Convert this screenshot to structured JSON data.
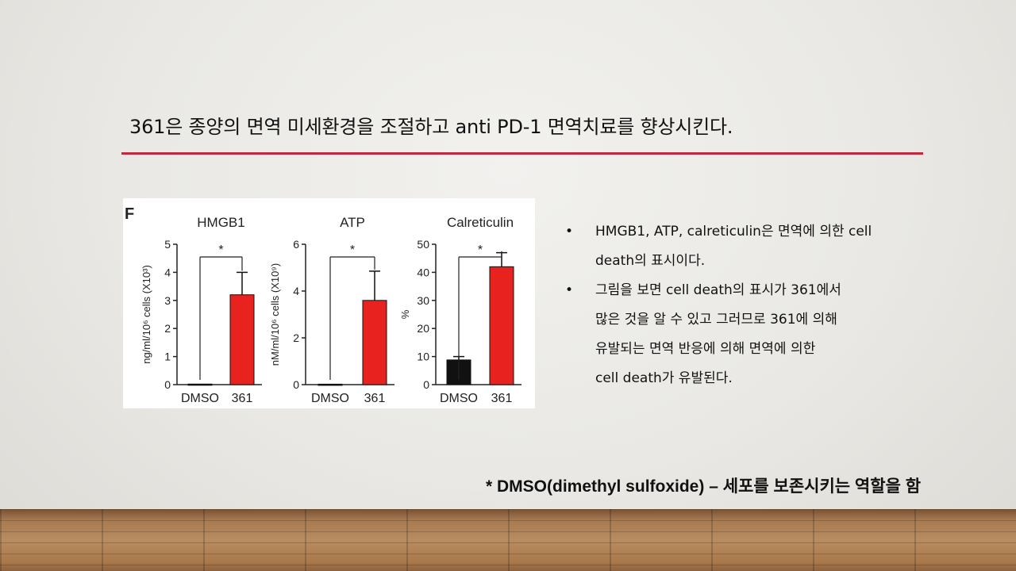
{
  "slide": {
    "title": "361은 종양의 면역 미세환경을 조절하고 anti PD-1 면역치료를 향상시킨다.",
    "bullets": [
      {
        "line1": "HMGB1, ATP, calreticulin은 면역에 의한 cell",
        "line2": "death의 표시이다."
      },
      {
        "line1": "그림을 보면 cell death의 표시가 361에서",
        "line2": "많은 것을 알 수 있고 그러므로 361에 의해",
        "line3": "유발되는 면역 반응에 의해 면역에 의한",
        "line4": "cell death가 유발된다."
      }
    ],
    "bullet_marker": "•",
    "footnote": "* DMSO(dimethyl sulfoxide) – 세포를 보존시키는 역할을 함"
  },
  "figure": {
    "panel_label": "F"
  },
  "chart_data": [
    {
      "type": "bar",
      "title": "HMGB1",
      "ylabel": "ng/ml/10⁶ cells (X10³)",
      "categories": [
        "DMSO",
        "361"
      ],
      "values": [
        0.02,
        3.2
      ],
      "error": [
        0.02,
        0.8
      ],
      "ylim": [
        0,
        5
      ],
      "yticks": [
        "0",
        "1",
        "2",
        "3",
        "4",
        "5"
      ],
      "significance": "*",
      "colors": [
        "#111111",
        "#e8231f"
      ]
    },
    {
      "type": "bar",
      "title": "ATP",
      "ylabel": "nM/ml/10⁶ cells (X10⁹)",
      "categories": [
        "DMSO",
        "361"
      ],
      "values": [
        0.02,
        3.6
      ],
      "error": [
        0.02,
        1.25
      ],
      "ylim": [
        0,
        6
      ],
      "yticks": [
        "0",
        "2",
        "4",
        "6"
      ],
      "significance": "*",
      "colors": [
        "#111111",
        "#e8231f"
      ]
    },
    {
      "type": "bar",
      "title": "Calreticulin",
      "ylabel": "%",
      "categories": [
        "DMSO",
        "361"
      ],
      "values": [
        8.8,
        42
      ],
      "error": [
        1.2,
        5
      ],
      "ylim": [
        0,
        50
      ],
      "yticks": [
        "0",
        "10",
        "20",
        "30",
        "40",
        "50"
      ],
      "significance": "*",
      "colors": [
        "#111111",
        "#e8231f"
      ]
    }
  ]
}
